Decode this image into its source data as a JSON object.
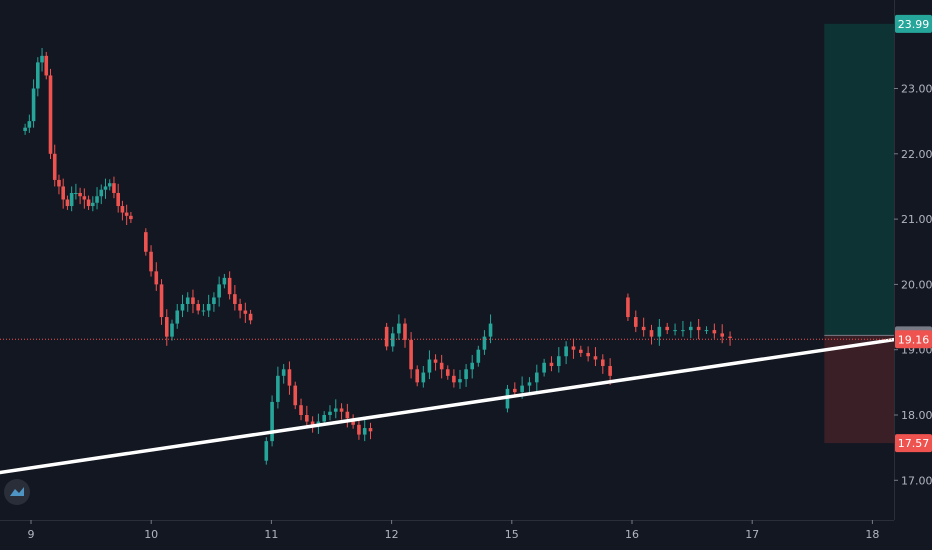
{
  "chart_data": {
    "type": "candlestick",
    "title": "",
    "xlabel": "",
    "ylabel": "",
    "x_ticks": [
      "9",
      "10",
      "11",
      "12",
      "15",
      "16",
      "17",
      "18"
    ],
    "y_ticks": [
      "17.00",
      "18.00",
      "19.00",
      "20.00",
      "21.00",
      "22.00",
      "23.00"
    ],
    "ylim": [
      16.5,
      24.3
    ],
    "grid": false,
    "price_tags": [
      {
        "label": "23.99",
        "value": 23.99,
        "color": "#26a69a"
      },
      {
        "label": "19.22",
        "value": 19.22,
        "color": "#787b86"
      },
      {
        "label": "19.16",
        "value": 19.16,
        "color": "#ef5350"
      },
      {
        "label": "17.57",
        "value": 17.57,
        "color": "#ef5350"
      }
    ],
    "last_price_line": 19.16,
    "position_tool": {
      "entry": 19.22,
      "target": 23.99,
      "stop": 17.57,
      "start_day": 6.6
    },
    "trendline": {
      "p1": [
        0,
        17.12
      ],
      "p2": [
        7.2,
        19.16
      ]
    },
    "days": [
      {
        "label": "9",
        "pos": 0,
        "closes": [
          22.4,
          22.5,
          23.0,
          23.4,
          23.5,
          23.2,
          22.0,
          21.6,
          21.5,
          21.3,
          21.2,
          21.4,
          21.4,
          21.35,
          21.3,
          21.2,
          21.25,
          21.35,
          21.45,
          21.5,
          21.55,
          21.4,
          21.2,
          21.1,
          21.05,
          21.0
        ]
      },
      {
        "label": "10",
        "pos": 1,
        "closes": [
          20.5,
          20.2,
          20.0,
          19.5,
          19.2,
          19.4,
          19.6,
          19.7,
          19.8,
          19.7,
          19.6,
          19.6,
          19.7,
          19.8,
          20.0,
          20.1,
          19.85,
          19.7,
          19.6,
          19.55,
          19.45
        ]
      },
      {
        "label": "11",
        "pos": 2,
        "closes": [
          17.6,
          18.2,
          18.6,
          18.7,
          18.45,
          18.15,
          18.0,
          17.9,
          17.85,
          17.9,
          18.0,
          18.05,
          18.1,
          18.05,
          17.95,
          17.85,
          17.7,
          17.8,
          17.75
        ]
      },
      {
        "label": "12",
        "pos": 3,
        "closes": [
          19.05,
          19.25,
          19.4,
          19.15,
          18.7,
          18.5,
          18.65,
          18.85,
          18.8,
          18.7,
          18.6,
          18.5,
          18.55,
          18.7,
          18.8,
          19.0,
          19.2,
          19.4
        ]
      },
      {
        "label": "15",
        "pos": 4,
        "closes": [
          18.4,
          18.35,
          18.45,
          18.5,
          18.65,
          18.8,
          18.75,
          18.9,
          19.05,
          19.0,
          18.95,
          18.9,
          18.85,
          18.75,
          18.6
        ]
      },
      {
        "label": "16",
        "pos": 5,
        "closes": [
          19.5,
          19.35,
          19.3,
          19.2,
          19.35,
          19.3,
          19.3,
          19.3,
          19.35,
          19.3,
          19.3,
          19.25,
          19.2,
          19.18
        ]
      }
    ]
  },
  "colors": {
    "background": "#131722",
    "up": "#26a69a",
    "down": "#ef5350",
    "axis_text": "#b2b5be",
    "trendline": "#ffffff",
    "target_zone": "#0e3335",
    "stop_zone": "#3a1f27",
    "logo": "#2a2e39"
  },
  "icons": {
    "logo": "tradingview-logo-icon"
  }
}
